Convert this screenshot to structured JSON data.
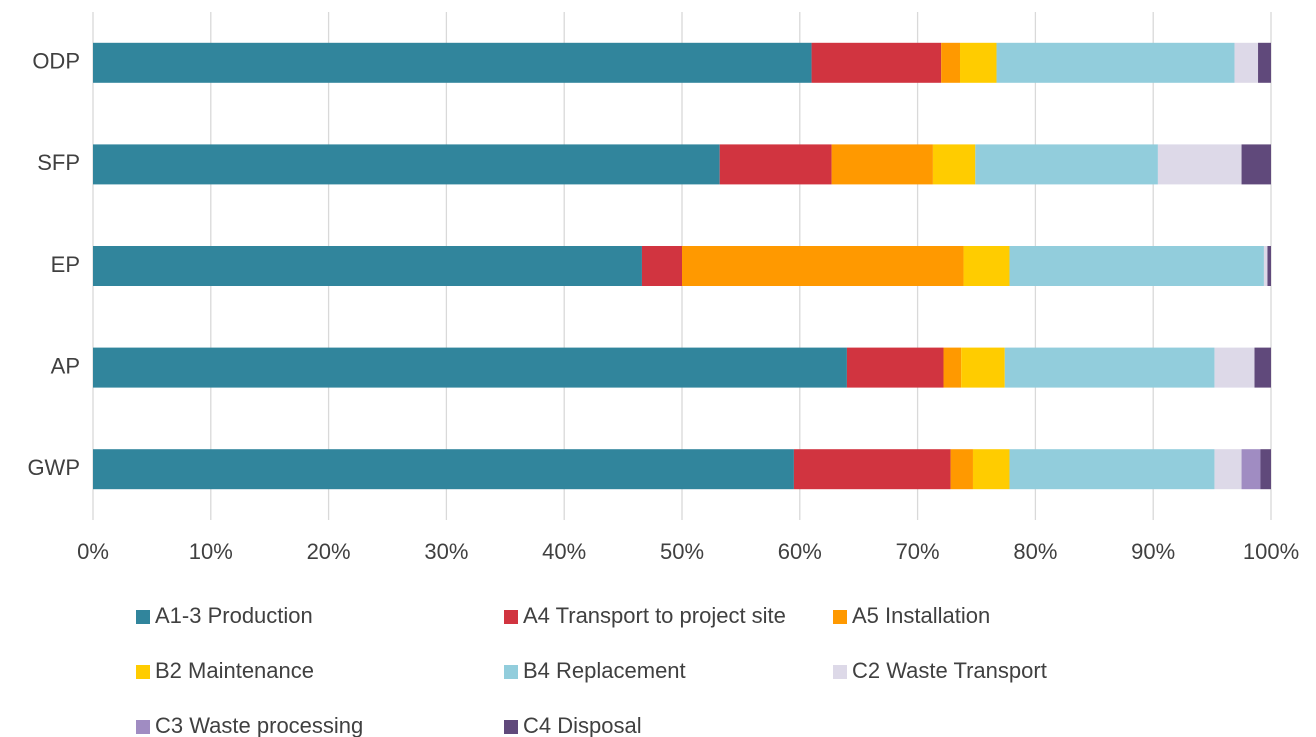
{
  "chart_data": {
    "type": "stacked_bar_horizontal",
    "categories": [
      "ODP",
      "SFP",
      "EP",
      "AP",
      "GWP"
    ],
    "series": [
      {
        "name": "A1-3 Production",
        "color": "#31859c",
        "values": [
          61,
          53.2,
          46.6,
          64,
          59.5
        ]
      },
      {
        "name": "A4 Transport to project site",
        "color": "#d13440",
        "values": [
          11,
          9.5,
          3.4,
          8.2,
          13.3
        ]
      },
      {
        "name": "A5 Installation",
        "color": "#ff9900",
        "values": [
          1.6,
          8.6,
          23.9,
          1.5,
          1.9
        ]
      },
      {
        "name": "B2 Maintenance",
        "color": "#ffcc00",
        "values": [
          3.1,
          3.6,
          3.9,
          3.7,
          3.1
        ]
      },
      {
        "name": "B4 Replacement",
        "color": "#92cddc",
        "values": [
          20.2,
          15.5,
          21.6,
          17.8,
          17.4
        ]
      },
      {
        "name": "C2 Waste Transport",
        "color": "#ddd9e8",
        "values": [
          2,
          7.1,
          0.3,
          3.4,
          2.3
        ]
      },
      {
        "name": "C3 Waste processing",
        "color": "#a08cc2",
        "values": [
          0,
          0,
          0,
          0,
          1.6
        ]
      },
      {
        "name": "C4 Disposal",
        "color": "#60497b",
        "values": [
          1.1,
          2.5,
          0.3,
          1.4,
          0.9
        ]
      }
    ],
    "xlim": [
      0,
      100
    ],
    "xticks": [
      {
        "value": 0,
        "label": "0%"
      },
      {
        "value": 10,
        "label": "10%"
      },
      {
        "value": 20,
        "label": "20%"
      },
      {
        "value": 30,
        "label": "30%"
      },
      {
        "value": 40,
        "label": "40%"
      },
      {
        "value": 50,
        "label": "50%"
      },
      {
        "value": 60,
        "label": "60%"
      },
      {
        "value": 70,
        "label": "70%"
      },
      {
        "value": 80,
        "label": "80%"
      },
      {
        "value": 90,
        "label": "90%"
      },
      {
        "value": 100,
        "label": "100%"
      }
    ],
    "grid": true
  }
}
